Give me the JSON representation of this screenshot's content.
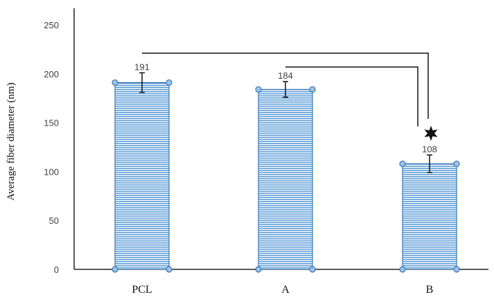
{
  "chart_data": {
    "type": "bar",
    "title": "",
    "xlabel": "",
    "ylabel": "Average fiber diameter  (nm)",
    "categories": [
      "PCL",
      "A",
      "B"
    ],
    "values": [
      191,
      184,
      108
    ],
    "data_labels": [
      "191",
      "184",
      "108"
    ],
    "error": [
      10,
      8,
      9
    ],
    "ylim": [
      0,
      250
    ],
    "yticks": [
      0,
      50,
      100,
      150,
      200,
      250
    ],
    "ytick_labels": [
      "0",
      "50",
      "100",
      "150",
      "200",
      "250"
    ],
    "grid": false,
    "legend": "none",
    "bar_fill_color": "#9dc3e6",
    "bar_stripe_color": "#5b9bd5",
    "bar_edge_color": "#3a75b0",
    "significance": [
      {
        "from": "PCL",
        "to": "B",
        "marker": "star"
      },
      {
        "from": "A",
        "to": "B",
        "marker": "star"
      }
    ]
  }
}
